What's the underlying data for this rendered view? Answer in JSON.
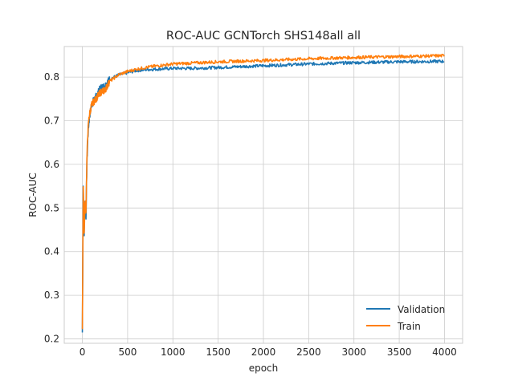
{
  "chart_data": {
    "type": "line",
    "title": "ROC-AUC GCNTorch SHS148all all",
    "xlabel": "epoch",
    "ylabel": "ROC-AUC",
    "xlim": [
      -200,
      4200
    ],
    "ylim": [
      0.19,
      0.87
    ],
    "xticks": [
      0,
      500,
      1000,
      1500,
      2000,
      2500,
      3000,
      3500,
      4000
    ],
    "yticks": [
      0.2,
      0.3,
      0.4,
      0.5,
      0.6,
      0.7,
      0.8
    ],
    "xtick_labels": [
      "0",
      "500",
      "1000",
      "1500",
      "2000",
      "2500",
      "3000",
      "3500",
      "4000"
    ],
    "ytick_labels": [
      "0.2",
      "0.3",
      "0.4",
      "0.5",
      "0.6",
      "0.7",
      "0.8"
    ],
    "grid": true,
    "legend_position": "lower-right",
    "series": [
      {
        "name": "Validation",
        "color": "#1f77b4",
        "x": [
          0,
          10,
          20,
          30,
          40,
          50,
          60,
          70,
          80,
          100,
          120,
          150,
          200,
          250,
          300,
          400,
          500,
          600,
          700,
          800,
          1000,
          1200,
          1500,
          2000,
          2500,
          3000,
          3500,
          4000
        ],
        "y": [
          0.215,
          0.55,
          0.44,
          0.52,
          0.48,
          0.6,
          0.66,
          0.69,
          0.71,
          0.735,
          0.745,
          0.755,
          0.775,
          0.78,
          0.795,
          0.805,
          0.81,
          0.815,
          0.817,
          0.818,
          0.82,
          0.82,
          0.822,
          0.826,
          0.83,
          0.833,
          0.835,
          0.836
        ]
      },
      {
        "name": "Train",
        "color": "#ff7f0e",
        "x": [
          0,
          10,
          20,
          30,
          40,
          50,
          60,
          70,
          80,
          100,
          120,
          150,
          200,
          250,
          300,
          400,
          500,
          600,
          700,
          800,
          1000,
          1200,
          1500,
          2000,
          2500,
          3000,
          3500,
          4000
        ],
        "y": [
          0.225,
          0.55,
          0.44,
          0.52,
          0.49,
          0.61,
          0.67,
          0.7,
          0.715,
          0.735,
          0.742,
          0.75,
          0.765,
          0.77,
          0.79,
          0.805,
          0.813,
          0.818,
          0.822,
          0.825,
          0.83,
          0.832,
          0.835,
          0.838,
          0.842,
          0.845,
          0.847,
          0.849
        ]
      }
    ]
  }
}
